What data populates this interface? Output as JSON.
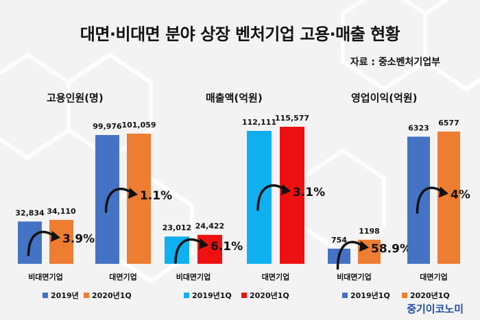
{
  "title": "대면·비대면 분야 상장 벤처기업 고용·매출 현황",
  "source": "자료 : 중소벤처기업부",
  "brand": "중기이코노미",
  "chart_data": [
    {
      "type": "bar",
      "title": "고용인원(명)",
      "categories": [
        "비대면기업",
        "대면기업"
      ],
      "series": [
        {
          "name": "2019년",
          "values": [
            32834,
            99976
          ],
          "color": "#4472c4"
        },
        {
          "name": "2020년1Q",
          "values": [
            34110,
            101059
          ],
          "color": "#ed7d31"
        }
      ],
      "value_labels": [
        [
          "32,834",
          "99,976"
        ],
        [
          "34,110",
          "101,059"
        ]
      ],
      "growth": [
        "3.9%",
        "1.1%"
      ],
      "legend_position": "bottom"
    },
    {
      "type": "bar",
      "title": "매출액(억원)",
      "categories": [
        "비대면기업",
        "대면기업"
      ],
      "series": [
        {
          "name": "2019년1Q",
          "values": [
            23012,
            112111
          ],
          "color": "#0fb0f0"
        },
        {
          "name": "2020년1Q",
          "values": [
            24422,
            115577
          ],
          "color": "#ee1111"
        }
      ],
      "value_labels": [
        [
          "23,012",
          "112,111"
        ],
        [
          "24,422",
          "115,577"
        ]
      ],
      "growth": [
        "6.1%",
        "3.1%"
      ],
      "legend_position": "bottom"
    },
    {
      "type": "bar",
      "title": "영업이익(억원)",
      "categories": [
        "비대면기업",
        "대면기업"
      ],
      "series": [
        {
          "name": "2019년1Q",
          "values": [
            754,
            6323
          ],
          "color": "#4472c4"
        },
        {
          "name": "2020년1Q",
          "values": [
            1198,
            6577
          ],
          "color": "#ed7d31"
        }
      ],
      "value_labels": [
        [
          "754",
          "6323"
        ],
        [
          "1198",
          "6577"
        ]
      ],
      "growth": [
        "58.9%",
        "4%"
      ],
      "legend_position": "bottom"
    }
  ]
}
